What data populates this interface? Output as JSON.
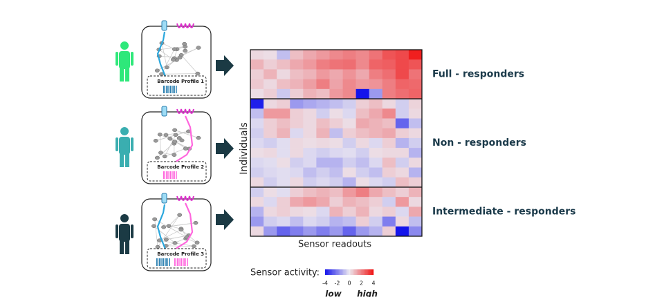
{
  "panels": [
    {
      "label": "Barcode Profile 1"
    },
    {
      "label": "Barcode Profile 2"
    },
    {
      "label": "Barcode Profile 3"
    }
  ],
  "chart_data": {
    "type": "heatmap",
    "x_label": "Sensor readouts",
    "y_label": "Individuals",
    "clim": [
      -4,
      4
    ],
    "groups": [
      {
        "name": "Full - responders",
        "values": [
          [
            0.3,
            0.2,
            -0.8,
            0.8,
            1.2,
            1.5,
            1.8,
            2,
            1.8,
            2.2,
            2.8,
            3,
            3.8
          ],
          [
            1,
            0.5,
            0.8,
            1.2,
            1.5,
            2,
            2.2,
            2.3,
            1.8,
            2.5,
            2.6,
            3,
            2.8
          ],
          [
            0.5,
            1,
            0.3,
            0.8,
            1,
            1.5,
            1.2,
            1.6,
            1.2,
            2,
            2.3,
            3,
            2.2
          ],
          [
            0.6,
            0.3,
            0.8,
            1,
            1.4,
            2,
            1.3,
            1.8,
            1.5,
            1.6,
            2,
            2.5,
            2.4
          ],
          [
            0.2,
            0.5,
            -0.6,
            0.5,
            1,
            0.8,
            1.5,
            1.8,
            -4,
            -1.5,
            2,
            2.3,
            2.5
          ]
        ]
      },
      {
        "name": "Non - responders",
        "values": [
          [
            -3.8,
            0.3,
            0.5,
            -1.5,
            -1.2,
            -1,
            -0.8,
            -0.5,
            0.5,
            0.8,
            0.3,
            -0.5,
            0.4
          ],
          [
            -0.8,
            1.5,
            1.5,
            0.5,
            0.3,
            -0.5,
            0.2,
            -0.3,
            0.8,
            1.2,
            1.8,
            -0.5,
            0.3
          ],
          [
            -0.3,
            0.5,
            0.8,
            0.5,
            0.3,
            0.8,
            0.5,
            0.2,
            1.2,
            1,
            0.8,
            -2.5,
            -0.8
          ],
          [
            -0.5,
            0.5,
            1,
            -0.3,
            0.3,
            1,
            -0.8,
            0.5,
            0.8,
            1,
            1.2,
            0.5,
            0.3
          ],
          [
            -0.3,
            -0.5,
            -0.2,
            0.3,
            0.2,
            0.3,
            0.2,
            -0.5,
            0.3,
            -0.3,
            0.5,
            -1,
            -0.5
          ],
          [
            0.2,
            0.3,
            -0.2,
            0.3,
            -0.3,
            -0.5,
            -0.3,
            -0.2,
            -0.5,
            0.2,
            0.3,
            0.3,
            -1
          ],
          [
            -0.3,
            -0.2,
            0.2,
            -0.5,
            -0.3,
            -1,
            -1,
            -0.5,
            -0.8,
            -0.3,
            0.8,
            -0.5,
            0.3
          ],
          [
            -0.5,
            -0.3,
            -0.2,
            -0.3,
            -0.8,
            -0.5,
            -0.8,
            0.2,
            -0.5,
            -0.8,
            0.5,
            0.3,
            -1
          ],
          [
            0.3,
            -0.5,
            -0.2,
            0.3,
            -0.5,
            -0.3,
            -0.5,
            -1,
            0.2,
            -0.3,
            -0.5,
            0.8,
            0.5
          ]
        ]
      },
      {
        "name": "Intermediate - responders",
        "values": [
          [
            -0.5,
            0.2,
            -0.2,
            0.5,
            0.8,
            1,
            0.8,
            1.5,
            2,
            1.2,
            0.8,
            0.5,
            1
          ],
          [
            0.3,
            -0.3,
            0.5,
            1.2,
            1.5,
            1.2,
            0.5,
            1,
            0.8,
            0.5,
            -0.5,
            1.5,
            0.3
          ],
          [
            -1,
            0.3,
            0.5,
            0.3,
            0.2,
            -0.3,
            1,
            0.5,
            1,
            0.3,
            0.5,
            -0.3,
            1.2
          ],
          [
            -1.5,
            -0.5,
            -0.3,
            -0.8,
            -0.3,
            -0.5,
            -1,
            -0.8,
            0.5,
            -0.5,
            -2,
            0.3,
            -0.8
          ],
          [
            0.3,
            -1.5,
            -2.5,
            -2,
            -1.5,
            -2,
            -1.5,
            -2.5,
            -1.5,
            -1,
            0.5,
            -4,
            -1.8
          ]
        ]
      }
    ],
    "colorbar": {
      "title": "Sensor activity:",
      "ticks": [
        -4,
        -2,
        0,
        2,
        4
      ],
      "low_label": "low",
      "high_label": "high"
    }
  }
}
